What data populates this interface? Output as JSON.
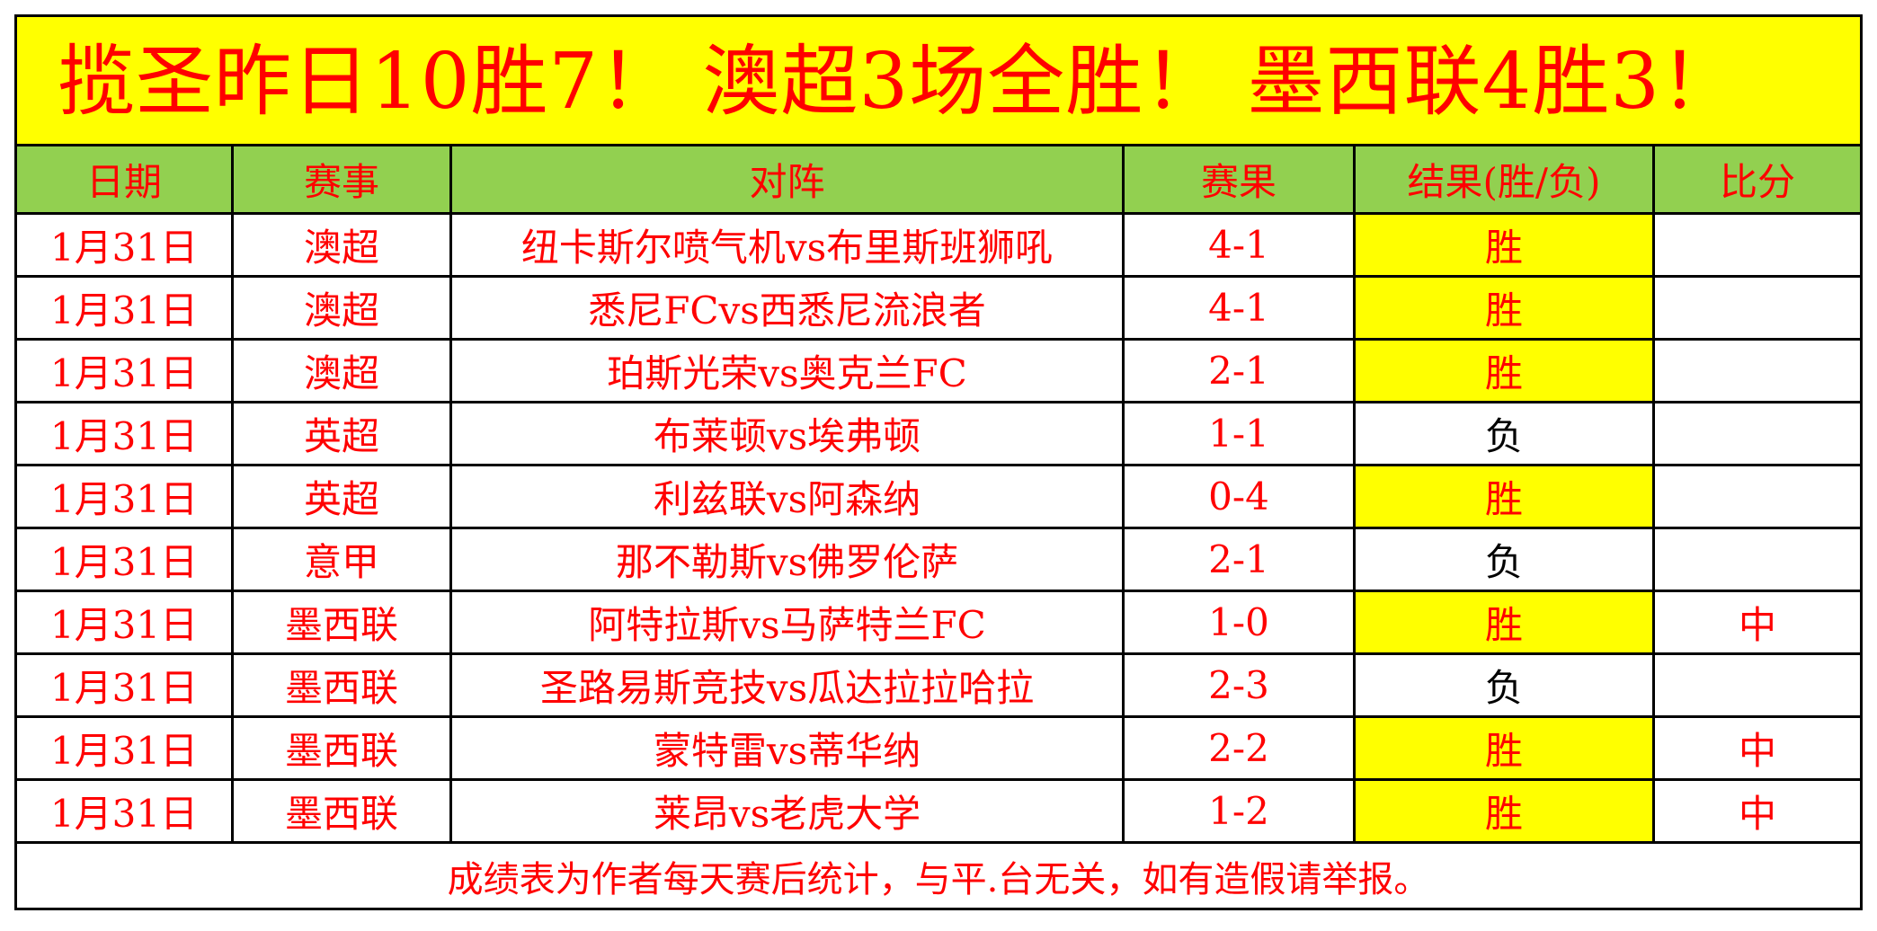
{
  "title": "揽圣昨日10胜7！ 澳超3场全胜！ 墨西联4胜3！",
  "headers": [
    "日期",
    "赛事",
    "对阵",
    "赛果",
    "结果(胜/负)",
    "比分"
  ],
  "rows": [
    {
      "date": "1月31日",
      "league": "澳超",
      "match": "纽卡斯尔喷气机vs布里斯班狮吼",
      "score": "4-1",
      "result": "胜",
      "bifen": ""
    },
    {
      "date": "1月31日",
      "league": "澳超",
      "match": "悉尼FCvs西悉尼流浪者",
      "score": "4-1",
      "result": "胜",
      "bifen": ""
    },
    {
      "date": "1月31日",
      "league": "澳超",
      "match": "珀斯光荣vs奥克兰FC",
      "score": "2-1",
      "result": "胜",
      "bifen": ""
    },
    {
      "date": "1月31日",
      "league": "英超",
      "match": "布莱顿vs埃弗顿",
      "score": "1-1",
      "result": "负",
      "bifen": ""
    },
    {
      "date": "1月31日",
      "league": "英超",
      "match": "利兹联vs阿森纳",
      "score": "0-4",
      "result": "胜",
      "bifen": ""
    },
    {
      "date": "1月31日",
      "league": "意甲",
      "match": "那不勒斯vs佛罗伦萨",
      "score": "2-1",
      "result": "负",
      "bifen": ""
    },
    {
      "date": "1月31日",
      "league": "墨西联",
      "match": "阿特拉斯vs马萨特兰FC",
      "score": "1-0",
      "result": "胜",
      "bifen": "中"
    },
    {
      "date": "1月31日",
      "league": "墨西联",
      "match": "圣路易斯竞技vs瓜达拉拉哈拉",
      "score": "2-3",
      "result": "负",
      "bifen": ""
    },
    {
      "date": "1月31日",
      "league": "墨西联",
      "match": "蒙特雷vs蒂华纳",
      "score": "2-2",
      "result": "胜",
      "bifen": "中"
    },
    {
      "date": "1月31日",
      "league": "墨西联",
      "match": "莱昂vs老虎大学",
      "score": "1-2",
      "result": "胜",
      "bifen": "中"
    }
  ],
  "footer": "成绩表为作者每天赛后统计，与平.台无关，如有造假请举报。",
  "colors": {
    "title_bg": "#ffff00",
    "header_bg": "#92d050",
    "text": "#ff0000",
    "win_bg": "#ffff00"
  }
}
